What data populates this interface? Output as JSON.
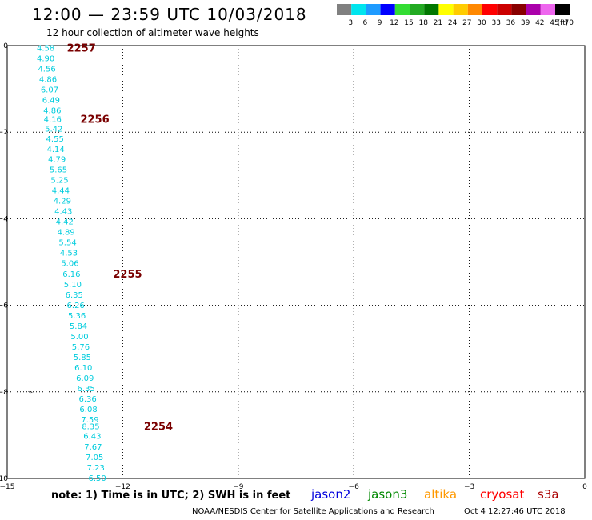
{
  "header": {
    "title": "12:00 — 23:59 UTC 10/03/2018",
    "subtitle": "12 hour collection of altimeter wave heights"
  },
  "color_scale": {
    "labels": [
      "3",
      "6",
      "9",
      "12",
      "15",
      "18",
      "21",
      "24",
      "27",
      "30",
      "33",
      "36",
      "39",
      "42",
      "45",
      "70"
    ],
    "unit": "(ft)",
    "colors": [
      "#808080",
      "#00e5ee",
      "#1e9bff",
      "#0000ff",
      "#33dd33",
      "#22aa22",
      "#007700",
      "#ffff00",
      "#ffcc00",
      "#ff8800",
      "#ff0000",
      "#cc0000",
      "#880000",
      "#aa00aa",
      "#ee66ee",
      "#000000"
    ]
  },
  "chart_data": {
    "type": "scatter",
    "xlim": [
      -15,
      0
    ],
    "ylim": [
      -10,
      0
    ],
    "x_ticks": [
      "−15",
      "−12",
      "−9",
      "−6",
      "−3",
      "0"
    ],
    "y_ticks": [
      "0",
      "−2",
      "−4",
      "−6",
      "−8",
      "−10"
    ],
    "grid": true,
    "point_color": "#00ccdd",
    "time_color": "#7a0000",
    "points": [
      {
        "x": -14.0,
        "y": -0.05,
        "v": "4.58"
      },
      {
        "x": -14.0,
        "y": -0.29,
        "v": "4.90"
      },
      {
        "x": -13.97,
        "y": -0.53,
        "v": "4.56"
      },
      {
        "x": -13.94,
        "y": -0.77,
        "v": "4.86"
      },
      {
        "x": -13.9,
        "y": -1.01,
        "v": "6.07"
      },
      {
        "x": -13.86,
        "y": -1.25,
        "v": "6.49"
      },
      {
        "x": -13.83,
        "y": -1.49,
        "v": "4.86"
      },
      {
        "x": -13.82,
        "y": -1.69,
        "v": "4.16"
      },
      {
        "x": -13.79,
        "y": -1.91,
        "v": "5.42"
      },
      {
        "x": -13.76,
        "y": -2.14,
        "v": "4.55"
      },
      {
        "x": -13.74,
        "y": -2.38,
        "v": "4.14"
      },
      {
        "x": -13.71,
        "y": -2.62,
        "v": "4.79"
      },
      {
        "x": -13.67,
        "y": -2.86,
        "v": "5.65"
      },
      {
        "x": -13.64,
        "y": -3.1,
        "v": "5.25"
      },
      {
        "x": -13.61,
        "y": -3.34,
        "v": "4.44"
      },
      {
        "x": -13.57,
        "y": -3.58,
        "v": "4.29"
      },
      {
        "x": -13.54,
        "y": -3.82,
        "v": "4.43"
      },
      {
        "x": -13.51,
        "y": -4.06,
        "v": "4.42"
      },
      {
        "x": -13.47,
        "y": -4.3,
        "v": "4.89"
      },
      {
        "x": -13.43,
        "y": -4.54,
        "v": "5.54"
      },
      {
        "x": -13.4,
        "y": -4.78,
        "v": "4.53"
      },
      {
        "x": -13.37,
        "y": -5.02,
        "v": "5.06"
      },
      {
        "x": -13.33,
        "y": -5.27,
        "v": "6.16"
      },
      {
        "x": -13.3,
        "y": -5.51,
        "v": "5.10"
      },
      {
        "x": -13.26,
        "y": -5.75,
        "v": "6.35"
      },
      {
        "x": -13.22,
        "y": -5.99,
        "v": "6.26"
      },
      {
        "x": -13.19,
        "y": -6.23,
        "v": "5.36"
      },
      {
        "x": -13.15,
        "y": -6.47,
        "v": "5.84"
      },
      {
        "x": -13.12,
        "y": -6.71,
        "v": "5.00"
      },
      {
        "x": -13.09,
        "y": -6.95,
        "v": "5.76"
      },
      {
        "x": -13.05,
        "y": -7.19,
        "v": "5.85"
      },
      {
        "x": -13.02,
        "y": -7.43,
        "v": "6.10"
      },
      {
        "x": -12.98,
        "y": -7.67,
        "v": "6.09"
      },
      {
        "x": -12.95,
        "y": -7.91,
        "v": "6.35"
      },
      {
        "x": -12.91,
        "y": -8.15,
        "v": "6.36"
      },
      {
        "x": -12.89,
        "y": -8.39,
        "v": "6.08"
      },
      {
        "x": -12.85,
        "y": -8.63,
        "v": "7.59"
      },
      {
        "x": -12.83,
        "y": -8.79,
        "v": "8.35"
      },
      {
        "x": -12.79,
        "y": -9.01,
        "v": "6.43"
      },
      {
        "x": -12.77,
        "y": -9.26,
        "v": "7.67"
      },
      {
        "x": -12.73,
        "y": -9.5,
        "v": "7.05"
      },
      {
        "x": -12.7,
        "y": -9.74,
        "v": "7.23"
      },
      {
        "x": -12.66,
        "y": -9.98,
        "v": "6.50"
      }
    ],
    "time_labels": [
      {
        "x": -13.45,
        "y": -0.05,
        "label": "2257"
      },
      {
        "x": -13.1,
        "y": -1.69,
        "label": "2256"
      },
      {
        "x": -12.25,
        "y": -5.27,
        "label": "2255"
      },
      {
        "x": -11.45,
        "y": -8.79,
        "label": "2254"
      }
    ]
  },
  "footer": {
    "note": "note: 1) Time is in UTC; 2) SWH is in feet",
    "satellites": [
      {
        "name": "jason2",
        "color": "#0000dd"
      },
      {
        "name": "jason3",
        "color": "#008800"
      },
      {
        "name": "altika",
        "color": "#ff9900"
      },
      {
        "name": "cryosat",
        "color": "#ff0000"
      },
      {
        "name": "s3a",
        "color": "#aa0000"
      }
    ],
    "credit": "NOAA/NESDIS Center for Satellite Applications and Research",
    "timestamp": "Oct  4 12:27:46 UTC 2018"
  }
}
